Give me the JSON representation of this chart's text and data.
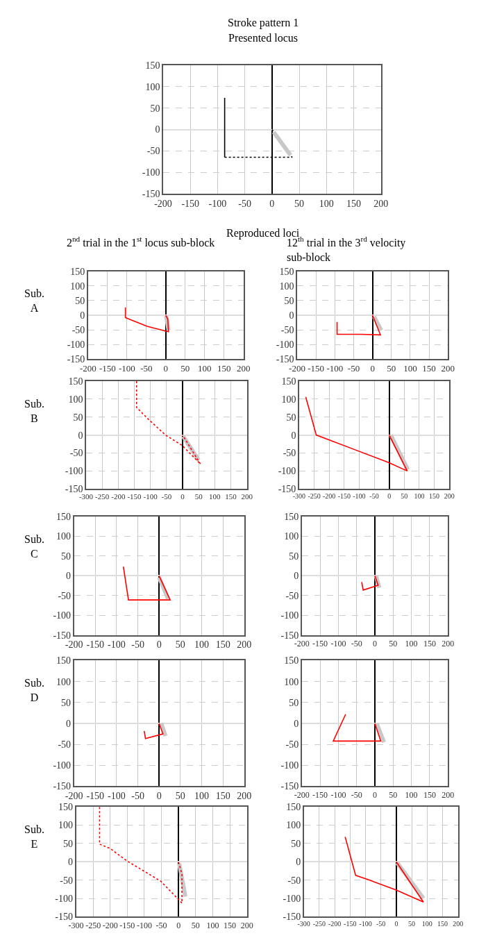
{
  "chart_data": [
    {
      "type": "line",
      "title": "Stroke pattern 1",
      "subtitle": "Presented locus",
      "xlim": [
        -200,
        200
      ],
      "ylim": [
        -150,
        150
      ],
      "xticks": [
        -200,
        -150,
        -100,
        -50,
        0,
        50,
        100,
        150,
        200
      ],
      "yticks": [
        -150,
        -100,
        -50,
        0,
        50,
        100,
        150
      ],
      "grid": true,
      "series": [
        {
          "color": "#000000",
          "x": [
            -87,
            -87
          ],
          "values": [
            74,
            -65
          ],
          "line_style": "solid"
        },
        {
          "color": "#000000",
          "x": [
            -87,
            37,
            0
          ],
          "values": [
            -65,
            -65,
            0
          ],
          "line_style": "dotted"
        },
        {
          "color": "#c8c8c8",
          "x": [
            3,
            34
          ],
          "values": [
            -6,
            -60
          ],
          "line_style": "solid"
        }
      ]
    },
    {
      "type": "line",
      "title": "2$^{nd}$ trial in the 1$^{st}$ locus sub-block",
      "annotations": [
        "Reproduced loci"
      ],
      "ylabel": "Sub. A",
      "xlim": [
        -200,
        200
      ],
      "ylim": [
        -150,
        150
      ],
      "xticks": [
        -200,
        -150,
        -100,
        -50,
        0,
        50,
        100,
        150,
        200
      ],
      "yticks": [
        -150,
        -100,
        -50,
        0,
        50,
        100,
        150
      ],
      "grid": true,
      "series": [
        {
          "color": "#c8c8c8",
          "x": [
            1,
            7
          ],
          "values": [
            -3,
            -51
          ],
          "line_style": "solid"
        },
        {
          "color": "#ff0000",
          "x": [
            -104,
            -104,
            -48,
            -1,
            7,
            5,
            0
          ],
          "values": [
            27,
            -8,
            -38,
            -54,
            -56,
            -13,
            0
          ],
          "line_style": "solid"
        }
      ]
    },
    {
      "type": "line",
      "title": "12$^{th}$ trial in the 3$^{rd}$ velocity sub-block",
      "xlim": [
        -200,
        200
      ],
      "ylim": [
        -150,
        150
      ],
      "xticks": [
        -200,
        -150,
        -100,
        -50,
        0,
        50,
        100,
        150,
        200
      ],
      "yticks": [
        -150,
        -100,
        -50,
        0,
        50,
        100,
        150
      ],
      "grid": true,
      "series": [
        {
          "color": "#c8c8c8",
          "x": [
            4,
            23
          ],
          "values": [
            -5,
            -52
          ],
          "line_style": "solid"
        },
        {
          "color": "#ff0000",
          "x": [
            -94,
            -94,
            -31,
            21,
            0
          ],
          "values": [
            -23,
            -65,
            -65,
            -67,
            0
          ],
          "line_style": "solid"
        }
      ]
    },
    {
      "type": "line",
      "ylabel": "Sub. B",
      "xlim": [
        -300,
        200
      ],
      "ylim": [
        -150,
        150
      ],
      "xticks": [
        -300,
        -250,
        -200,
        -150,
        -100,
        -50,
        0,
        50,
        100,
        150,
        200
      ],
      "yticks": [
        -150,
        -100,
        -50,
        0,
        50,
        100,
        150
      ],
      "grid": true,
      "series": [
        {
          "color": "#c8c8c8",
          "x": [
            2,
            50
          ],
          "values": [
            -4,
            -70
          ],
          "line_style": "solid"
        },
        {
          "color": "#ff0000",
          "x": [
            -143,
            -143,
            -111,
            -53,
            -1,
            56,
            0
          ],
          "values": [
            150,
            77,
            48,
            0,
            -29,
            -81,
            0
          ],
          "line_style": "dotted"
        }
      ]
    },
    {
      "type": "line",
      "xlim": [
        -300,
        200
      ],
      "ylim": [
        -150,
        150
      ],
      "xticks": [
        -300,
        -250,
        -200,
        -150,
        -100,
        -50,
        0,
        50,
        100,
        150,
        200
      ],
      "yticks": [
        -150,
        -100,
        -50,
        0,
        50,
        100,
        150
      ],
      "grid": true,
      "series": [
        {
          "color": "#c8c8c8",
          "x": [
            5,
            62
          ],
          "values": [
            0,
            -96
          ],
          "line_style": "solid"
        },
        {
          "color": "#ff0000",
          "x": [
            -278,
            -243,
            0,
            60,
            0
          ],
          "values": [
            106,
            0,
            -77,
            -100,
            0
          ],
          "line_style": "solid"
        }
      ]
    },
    {
      "type": "line",
      "ylabel": "Sub. C",
      "xlim": [
        -200,
        200
      ],
      "ylim": [
        -150,
        150
      ],
      "xticks": [
        -200,
        -150,
        -100,
        -50,
        0,
        50,
        100,
        150,
        200
      ],
      "yticks": [
        -150,
        -100,
        -50,
        0,
        50,
        100,
        150
      ],
      "grid": true,
      "series": [
        {
          "color": "#c8c8c8",
          "x": [
            0,
            21
          ],
          "values": [
            -4,
            -58
          ],
          "line_style": "solid"
        },
        {
          "color": "#ff0000",
          "x": [
            -84,
            -72,
            26,
            0
          ],
          "values": [
            23,
            -61,
            -61,
            0
          ],
          "line_style": "solid"
        }
      ]
    },
    {
      "type": "line",
      "xlim": [
        -200,
        200
      ],
      "ylim": [
        -150,
        150
      ],
      "xticks": [
        -200,
        -150,
        -100,
        -50,
        0,
        50,
        100,
        150,
        200
      ],
      "yticks": [
        -150,
        -100,
        -50,
        0,
        50,
        100,
        150
      ],
      "grid": true,
      "series": [
        {
          "color": "#c8c8c8",
          "x": [
            3,
            12
          ],
          "values": [
            0,
            -30
          ],
          "line_style": "solid"
        },
        {
          "color": "#ff0000",
          "x": [
            -36,
            -32,
            9,
            0
          ],
          "values": [
            -16,
            -36,
            -24,
            0
          ],
          "line_style": "solid"
        }
      ]
    },
    {
      "type": "line",
      "ylabel": "Sub. D",
      "xlim": [
        -200,
        200
      ],
      "ylim": [
        -150,
        150
      ],
      "xticks": [
        -200,
        -150,
        -100,
        -50,
        0,
        50,
        100,
        150,
        200
      ],
      "yticks": [
        -150,
        -100,
        -50,
        0,
        50,
        100,
        150
      ],
      "grid": true,
      "series": [
        {
          "color": "#c8c8c8",
          "x": [
            5,
            15
          ],
          "values": [
            0,
            -30
          ],
          "line_style": "solid"
        },
        {
          "color": "#ff0000",
          "x": [
            -35,
            -32,
            9,
            0
          ],
          "values": [
            -18,
            -36,
            -25,
            0
          ],
          "line_style": "solid"
        }
      ]
    },
    {
      "type": "line",
      "xlim": [
        -200,
        200
      ],
      "ylim": [
        -150,
        150
      ],
      "xticks": [
        -200,
        -150,
        -100,
        -50,
        0,
        50,
        100,
        150,
        200
      ],
      "yticks": [
        -150,
        -100,
        -50,
        0,
        50,
        100,
        150
      ],
      "grid": true,
      "series": [
        {
          "color": "#c8c8c8",
          "x": [
            5,
            25
          ],
          "values": [
            0,
            -45
          ],
          "line_style": "solid"
        },
        {
          "color": "#ff0000",
          "x": [
            -80,
            -114,
            16,
            0
          ],
          "values": [
            22,
            -42,
            -42,
            0
          ],
          "line_style": "solid"
        }
      ]
    },
    {
      "type": "line",
      "ylabel": "Sub. E",
      "xlim": [
        -300,
        200
      ],
      "ylim": [
        -150,
        150
      ],
      "xticks": [
        -300,
        -250,
        -200,
        -150,
        -100,
        -50,
        0,
        50,
        100,
        150,
        200
      ],
      "yticks": [
        -150,
        -100,
        -50,
        0,
        50,
        100,
        150
      ],
      "grid": true,
      "series": [
        {
          "color": "#c8c8c8",
          "x": [
            2,
            20
          ],
          "values": [
            -5,
            -95
          ],
          "line_style": "solid"
        },
        {
          "color": "#ff0000",
          "x": [
            -231,
            -231,
            -201,
            -152,
            -52,
            -2,
            10,
            10,
            0
          ],
          "values": [
            150,
            48,
            37,
            3,
            -53,
            -101,
            -113,
            -34,
            0
          ],
          "line_style": "dotted"
        }
      ]
    },
    {
      "type": "line",
      "xlim": [
        -300,
        200
      ],
      "ylim": [
        -150,
        150
      ],
      "xticks": [
        -300,
        -250,
        -200,
        -150,
        -100,
        -50,
        0,
        50,
        100,
        150,
        200
      ],
      "yticks": [
        -150,
        -100,
        -50,
        0,
        50,
        100,
        150
      ],
      "grid": true,
      "series": [
        {
          "color": "#c8c8c8",
          "x": [
            3,
            88
          ],
          "values": [
            -3,
            -100
          ],
          "line_style": "solid"
        },
        {
          "color": "#ff0000",
          "x": [
            -166,
            -132,
            -94,
            0,
            88,
            0
          ],
          "values": [
            68,
            -37,
            -48,
            -77,
            -110,
            0
          ],
          "line_style": "solid"
        }
      ]
    }
  ]
}
